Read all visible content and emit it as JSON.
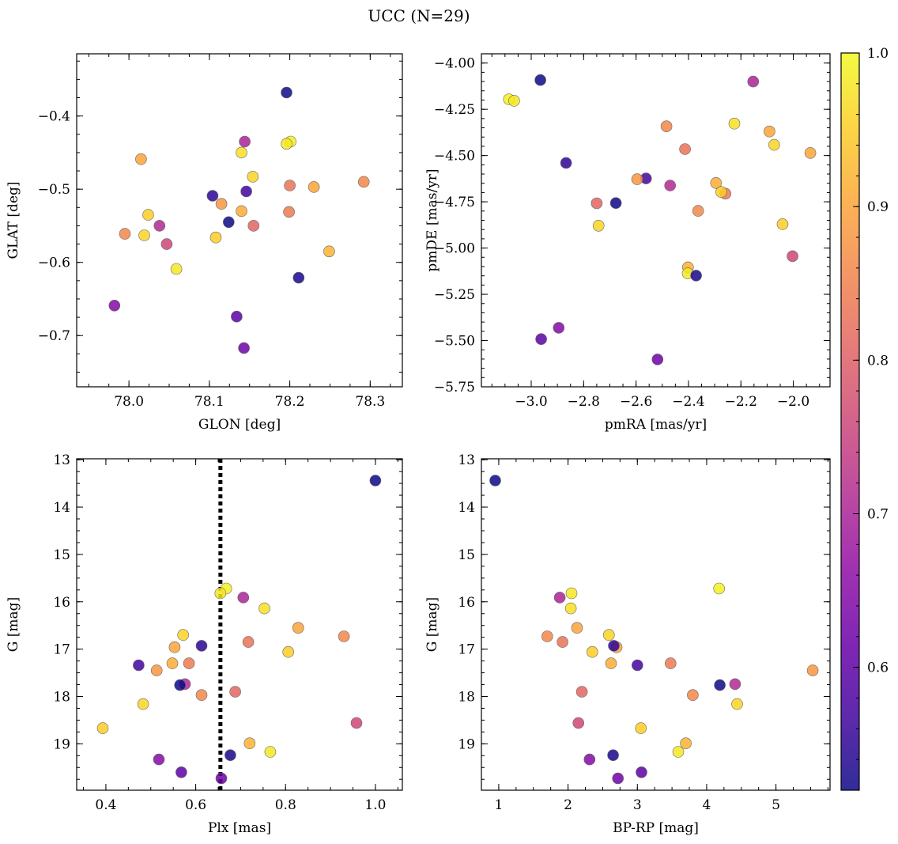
{
  "figure": {
    "title": "UCC (N=29)"
  },
  "colorbar": {
    "colormap": "plasma",
    "range": [
      0.52,
      1.0
    ],
    "ticks": [
      0.6,
      0.7,
      0.8,
      0.9,
      1.0
    ],
    "tick_labels": [
      "0.6",
      "0.7",
      "0.8",
      "0.9",
      "1.0"
    ]
  },
  "chart_data": [
    {
      "id": "glon_glat",
      "type": "scatter",
      "xlabel": "GLON [deg]",
      "ylabel": "GLAT [deg]",
      "xlim": [
        77.935,
        78.34
      ],
      "ylim": [
        -0.77,
        -0.315
      ],
      "y_inverted": false,
      "xticks": [
        78.0,
        78.1,
        78.2,
        78.3
      ],
      "xtick_labels": [
        "78.0",
        "78.1",
        "78.2",
        "78.3"
      ],
      "yticks": [
        -0.4,
        -0.5,
        -0.6,
        -0.7
      ],
      "ytick_labels": [
        "−0.4",
        "−0.5",
        "−0.6",
        "−0.7"
      ],
      "x": [
        78.196,
        78.201,
        78.196,
        78.144,
        78.14,
        78.015,
        78.154,
        78.292,
        78.2,
        78.23,
        78.104,
        78.146,
        78.115,
        78.14,
        78.199,
        78.024,
        78.038,
        78.124,
        78.155,
        77.995,
        78.019,
        78.108,
        78.047,
        78.249,
        78.059,
        78.211,
        77.982,
        78.134,
        78.143
      ],
      "y": [
        -0.368,
        -0.435,
        -0.438,
        -0.435,
        -0.45,
        -0.459,
        -0.483,
        -0.49,
        -0.495,
        -0.497,
        -0.509,
        -0.503,
        -0.52,
        -0.53,
        -0.531,
        -0.535,
        -0.55,
        -0.545,
        -0.55,
        -0.561,
        -0.563,
        -0.566,
        -0.575,
        -0.585,
        -0.609,
        -0.621,
        -0.659,
        -0.674,
        -0.717
      ]
    },
    {
      "id": "pm",
      "type": "scatter",
      "xlabel": "pmRA [mas/yr]",
      "ylabel": "pmDE [mas/yr]",
      "xlim": [
        -3.19,
        -1.86
      ],
      "ylim": [
        -5.75,
        -3.95
      ],
      "y_inverted": false,
      "xticks": [
        -3.0,
        -2.8,
        -2.6,
        -2.4,
        -2.2,
        -2.0
      ],
      "xtick_labels": [
        "−3.0",
        "−2.8",
        "−2.6",
        "−2.4",
        "−2.2",
        "−2.0"
      ],
      "yticks": [
        -4.0,
        -4.25,
        -4.5,
        -4.75,
        -5.0,
        -5.25,
        -5.5,
        -5.75
      ],
      "ytick_labels": [
        "−4.00",
        "−4.25",
        "−4.50",
        "−4.75",
        "−5.00",
        "−5.25",
        "−5.50",
        "−5.75"
      ],
      "x": [
        -2.965,
        -3.085,
        -3.065,
        -2.153,
        -2.225,
        -2.091,
        -2.073,
        -2.484,
        -2.413,
        -1.935,
        -2.867,
        -2.562,
        -2.596,
        -2.295,
        -2.259,
        -2.275,
        -2.47,
        -2.677,
        -2.75,
        -2.363,
        -2.743,
        -2.041,
        -2.003,
        -2.402,
        -2.403,
        -2.371,
        -2.895,
        -2.962,
        -2.518
      ],
      "y": [
        -4.092,
        -4.196,
        -4.204,
        -4.1,
        -4.327,
        -4.37,
        -4.442,
        -4.342,
        -4.465,
        -4.486,
        -4.54,
        -4.624,
        -4.628,
        -4.648,
        -4.706,
        -4.697,
        -4.662,
        -4.757,
        -4.758,
        -4.799,
        -4.879,
        -4.871,
        -5.044,
        -5.104,
        -5.137,
        -5.149,
        -5.431,
        -5.492,
        -5.602
      ]
    },
    {
      "id": "plx_g",
      "type": "scatter",
      "xlabel": "Plx [mas]",
      "ylabel": "G [mag]",
      "xlim": [
        0.335,
        1.06
      ],
      "ylim": [
        19.98,
        12.98
      ],
      "y_inverted": true,
      "xticks": [
        0.4,
        0.6,
        0.8,
        1.0
      ],
      "xtick_labels": [
        "0.4",
        "0.6",
        "0.8",
        "1.0"
      ],
      "yticks": [
        13,
        14,
        15,
        16,
        17,
        18,
        19
      ],
      "ytick_labels": [
        "13",
        "14",
        "15",
        "16",
        "17",
        "18",
        "19"
      ],
      "vline": 0.655,
      "x": [
        1.0,
        0.668,
        0.655,
        0.706,
        0.753,
        0.828,
        0.572,
        0.93,
        0.717,
        0.553,
        0.613,
        0.473,
        0.513,
        0.548,
        0.585,
        0.806,
        0.576,
        0.565,
        0.688,
        0.613,
        0.483,
        0.393,
        0.958,
        0.72,
        0.766,
        0.677,
        0.518,
        0.568,
        0.657
      ],
      "y": [
        13.44,
        15.72,
        15.82,
        15.91,
        16.14,
        16.55,
        16.7,
        16.73,
        16.85,
        16.96,
        16.93,
        17.34,
        17.45,
        17.3,
        17.3,
        17.06,
        17.74,
        17.76,
        17.9,
        17.97,
        18.16,
        18.67,
        18.56,
        18.99,
        19.17,
        19.24,
        19.33,
        19.6,
        19.73
      ]
    },
    {
      "id": "bprp_g",
      "type": "scatter",
      "xlabel": "BP-RP [mag]",
      "ylabel": "G [mag]",
      "xlim": [
        0.75,
        5.78
      ],
      "ylim": [
        19.98,
        12.98
      ],
      "y_inverted": true,
      "xticks": [
        1,
        2,
        3,
        4,
        5
      ],
      "xtick_labels": [
        "1",
        "2",
        "3",
        "4",
        "5"
      ],
      "yticks": [
        13,
        14,
        15,
        16,
        17,
        18,
        19
      ],
      "ytick_labels": [
        "13",
        "14",
        "15",
        "16",
        "17",
        "18",
        "19"
      ],
      "x": [
        0.95,
        4.18,
        2.05,
        1.88,
        2.04,
        2.13,
        2.59,
        1.7,
        1.92,
        2.7,
        2.66,
        3.0,
        5.53,
        2.62,
        3.48,
        2.35,
        4.41,
        4.19,
        2.2,
        3.8,
        4.44,
        3.05,
        2.15,
        3.7,
        3.59,
        2.65,
        2.31,
        3.06,
        2.72
      ],
      "y": [
        13.44,
        15.72,
        15.82,
        15.91,
        16.14,
        16.55,
        16.7,
        16.73,
        16.85,
        16.96,
        16.93,
        17.34,
        17.45,
        17.3,
        17.3,
        17.06,
        17.74,
        17.76,
        17.9,
        17.97,
        18.16,
        18.67,
        18.56,
        18.99,
        19.17,
        19.24,
        19.33,
        19.6,
        19.73
      ]
    }
  ],
  "membership": [
    0.52,
    0.99,
    0.98,
    0.7,
    0.97,
    0.9,
    0.96,
    0.86,
    0.83,
    0.9,
    0.55,
    0.57,
    0.88,
    0.91,
    0.84,
    0.95,
    0.71,
    0.52,
    0.81,
    0.86,
    0.96,
    0.95,
    0.76,
    0.92,
    0.98,
    0.53,
    0.65,
    0.6,
    0.62
  ]
}
